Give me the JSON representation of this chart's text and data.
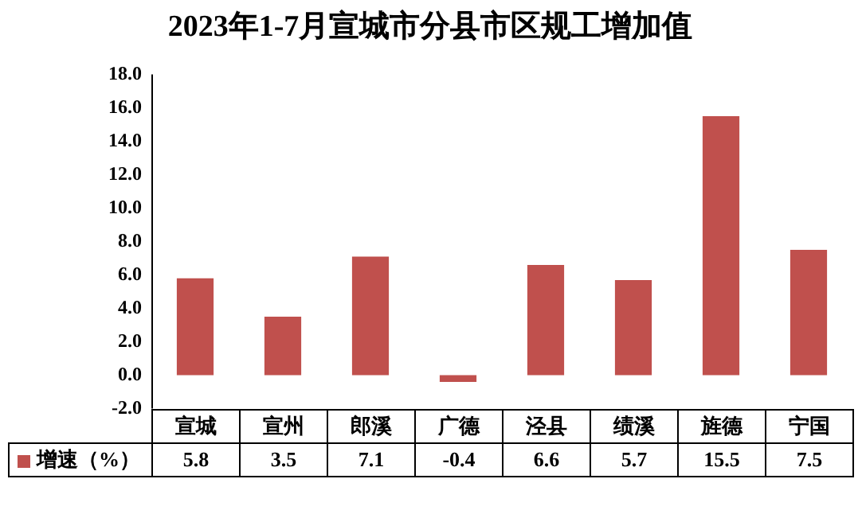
{
  "chart_data": {
    "type": "bar",
    "title": "2023年1-7月宣城市分县市区规工增加值",
    "categories": [
      "宣城",
      "宣州",
      "郎溪",
      "广德",
      "泾县",
      "绩溪",
      "旌德",
      "宁国"
    ],
    "series": [
      {
        "name": "增速（%）",
        "color": "#c0504d",
        "values": [
          5.8,
          3.5,
          7.1,
          -0.4,
          6.6,
          5.7,
          15.5,
          7.5
        ]
      }
    ],
    "ylim": [
      -2,
      18
    ],
    "yticks": [
      {
        "value": -2,
        "label": "-2.0"
      },
      {
        "value": 0,
        "label": "0.0"
      },
      {
        "value": 2,
        "label": "2.0"
      },
      {
        "value": 4,
        "label": "4.0"
      },
      {
        "value": 6,
        "label": "6.0"
      },
      {
        "value": 8,
        "label": "8.0"
      },
      {
        "value": 10,
        "label": "10.0"
      },
      {
        "value": 12,
        "label": "12.0"
      },
      {
        "value": 14,
        "label": "14.0"
      },
      {
        "value": 16,
        "label": "16.0"
      },
      {
        "value": 18,
        "label": "18.0"
      }
    ],
    "grid": false,
    "legend": "bottom left",
    "data_labels": true
  }
}
